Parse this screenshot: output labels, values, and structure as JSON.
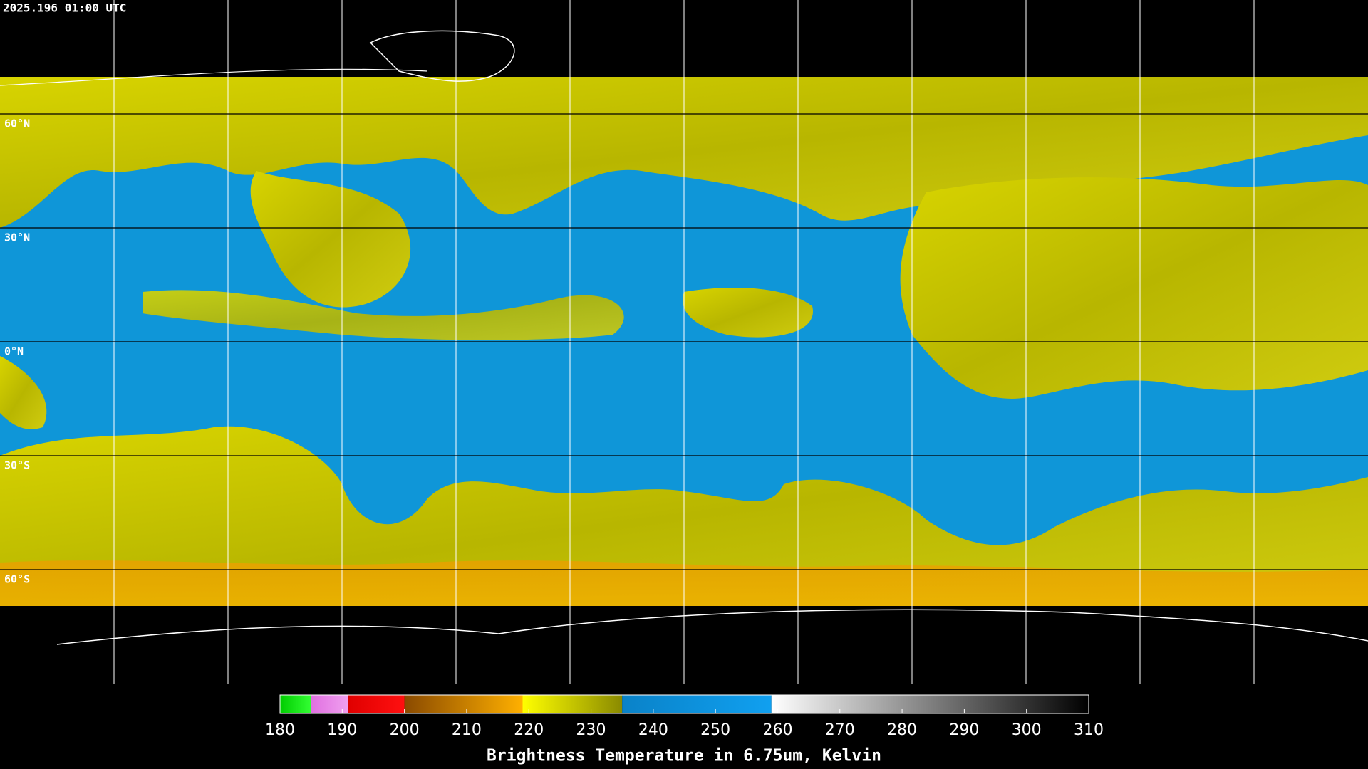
{
  "timestamp": "2025.196 01:00 UTC",
  "latitude_lines": [
    {
      "value": 60,
      "label": "60°N"
    },
    {
      "value": 30,
      "label": "30°N"
    },
    {
      "value": 0,
      "label": "0°N"
    },
    {
      "value": -30,
      "label": "30°S"
    },
    {
      "value": -60,
      "label": "60°S"
    }
  ],
  "colorbar": {
    "title": "Brightness Temperature in 6.75um, Kelvin",
    "range": [
      180,
      310
    ],
    "ticks": [
      180,
      190,
      200,
      210,
      220,
      230,
      240,
      250,
      260,
      270,
      280,
      290,
      300,
      310
    ],
    "segments": [
      {
        "from": 180,
        "to": 185,
        "colors": [
          "#00cc00",
          "#33ff33"
        ]
      },
      {
        "from": 185,
        "to": 191,
        "colors": [
          "#e070e0",
          "#f0a0f0"
        ]
      },
      {
        "from": 191,
        "to": 200,
        "colors": [
          "#e00000",
          "#ff1010"
        ]
      },
      {
        "from": 200,
        "to": 219,
        "colors": [
          "#8a4a00",
          "#ffb000"
        ]
      },
      {
        "from": 219,
        "to": 235,
        "colors": [
          "#ffff00",
          "#8a8a00"
        ]
      },
      {
        "from": 235,
        "to": 259,
        "colors": [
          "#0a82c8",
          "#10a0f0"
        ]
      },
      {
        "from": 259,
        "to": 310,
        "colors": [
          "#ffffff",
          "#000000"
        ]
      }
    ]
  }
}
